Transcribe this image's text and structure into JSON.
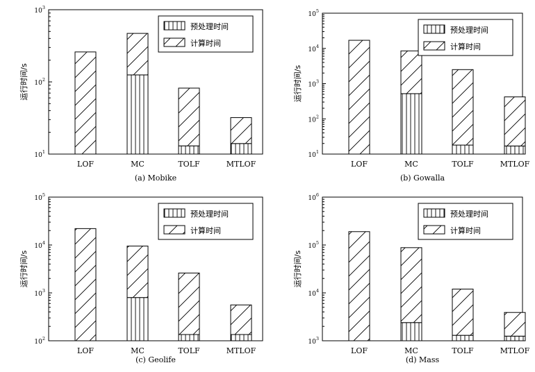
{
  "figure": {
    "ylabel": "运行时间/s",
    "legend": [
      "预处理时间",
      "计算时间"
    ],
    "colors": {
      "stroke": "#000000",
      "background": "#ffffff"
    }
  },
  "chart_data": [
    {
      "type": "bar",
      "stacked": true,
      "log_scale": true,
      "caption": "(a) Mobike",
      "categories": [
        "LOF",
        "MC",
        "TOLF",
        "MTLOF"
      ],
      "series": [
        {
          "name": "预处理时间",
          "values": [
            0,
            125,
            13,
            14
          ]
        },
        {
          "name": "计算时间",
          "values": [
            260,
            345,
            69,
            18
          ]
        }
      ],
      "ylim": [
        10,
        1000
      ],
      "yticks": [
        {
          "base": "10",
          "exp": "1"
        },
        {
          "base": "10",
          "exp": "2"
        },
        {
          "base": "10",
          "exp": "3"
        }
      ],
      "ylabel": "运行时间/s",
      "legend_position": "top-right"
    },
    {
      "type": "bar",
      "stacked": true,
      "log_scale": true,
      "caption": "(b) Gowalla",
      "categories": [
        "LOF",
        "MC",
        "TOLF",
        "MTLOF"
      ],
      "series": [
        {
          "name": "预处理时间",
          "values": [
            0,
            520,
            18,
            17
          ]
        },
        {
          "name": "计算时间",
          "values": [
            17000,
            7980,
            2482,
            403
          ]
        }
      ],
      "ylim": [
        10,
        100000
      ],
      "yticks": [
        {
          "base": "10",
          "exp": "1"
        },
        {
          "base": "10",
          "exp": "2"
        },
        {
          "base": "10",
          "exp": "3"
        },
        {
          "base": "10",
          "exp": "4"
        },
        {
          "base": "10",
          "exp": "5"
        }
      ],
      "ylabel": "运行时间/s",
      "legend_position": "top-right"
    },
    {
      "type": "bar",
      "stacked": true,
      "log_scale": true,
      "caption": "(c) Geolife",
      "categories": [
        "LOF",
        "MC",
        "TOLF",
        "MTLOF"
      ],
      "series": [
        {
          "name": "预处理时间",
          "values": [
            0,
            800,
            135,
            135
          ]
        },
        {
          "name": "计算时间",
          "values": [
            22000,
            8700,
            2465,
            425
          ]
        }
      ],
      "ylim": [
        100,
        100000
      ],
      "yticks": [
        {
          "base": "10",
          "exp": "2"
        },
        {
          "base": "10",
          "exp": "3"
        },
        {
          "base": "10",
          "exp": "4"
        },
        {
          "base": "10",
          "exp": "5"
        }
      ],
      "ylabel": "运行时间/s",
      "legend_position": "top-right"
    },
    {
      "type": "bar",
      "stacked": true,
      "log_scale": true,
      "caption": "(d) Mass",
      "categories": [
        "LOF",
        "MC",
        "TOLF",
        "MTLOF"
      ],
      "series": [
        {
          "name": "预处理时间",
          "values": [
            0,
            2400,
            1300,
            1250
          ]
        },
        {
          "name": "计算时间",
          "values": [
            190000,
            85600,
            10700,
            2650
          ]
        }
      ],
      "ylim": [
        1000,
        1000000
      ],
      "yticks": [
        {
          "base": "10",
          "exp": "3"
        },
        {
          "base": "10",
          "exp": "4"
        },
        {
          "base": "10",
          "exp": "5"
        },
        {
          "base": "10",
          "exp": "6"
        }
      ],
      "ylabel": "运行时间/s",
      "legend_position": "top-right"
    }
  ]
}
